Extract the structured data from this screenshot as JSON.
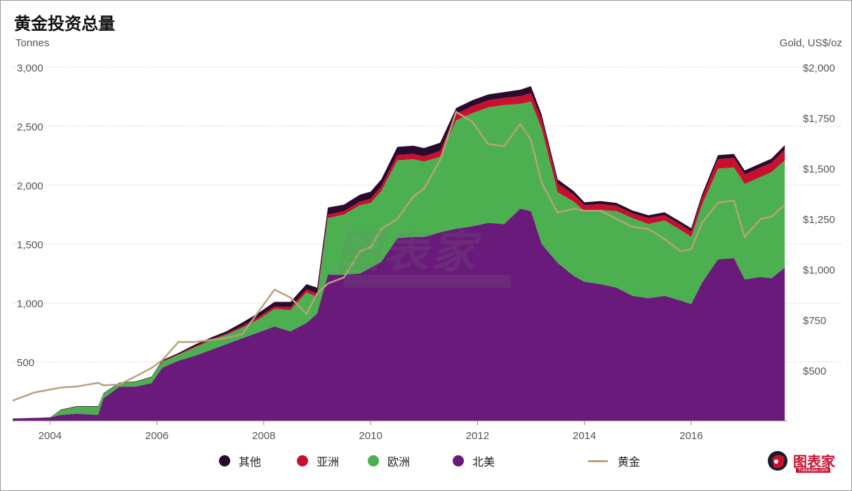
{
  "title": "黄金投资总量",
  "left_unit": "Tonnes",
  "right_unit": "Gold, US$/oz",
  "legend": [
    {
      "label": "其他",
      "color": "#2a0a2e",
      "kind": "dot"
    },
    {
      "label": "亚洲",
      "color": "#c8102e",
      "kind": "dot"
    },
    {
      "label": "欧洲",
      "color": "#4caf50",
      "kind": "dot"
    },
    {
      "label": "北美",
      "color": "#6a1a7a",
      "kind": "dot"
    },
    {
      "label": "黄金",
      "color": "#b8a27a",
      "kind": "line"
    }
  ],
  "watermark": "图表家",
  "logo_text": "图表家",
  "logo_sub": "Tubiaojia.com",
  "chart_data": {
    "type": "area",
    "x": [
      2003.3,
      2003.7,
      2004.0,
      2004.2,
      2004.5,
      2004.9,
      2005.0,
      2005.3,
      2005.6,
      2005.9,
      2006.1,
      2006.4,
      2006.7,
      2007.0,
      2007.3,
      2007.6,
      2007.9,
      2008.2,
      2008.5,
      2008.8,
      2009.0,
      2009.2,
      2009.5,
      2009.8,
      2010.0,
      2010.2,
      2010.5,
      2010.8,
      2011.0,
      2011.3,
      2011.6,
      2011.9,
      2012.2,
      2012.5,
      2012.8,
      2013.0,
      2013.2,
      2013.5,
      2013.8,
      2014.0,
      2014.3,
      2014.6,
      2014.9,
      2015.2,
      2015.5,
      2015.8,
      2016.0,
      2016.2,
      2016.5,
      2016.8,
      2017.0,
      2017.3,
      2017.5,
      2017.75
    ],
    "xticks": [
      2004,
      2006,
      2008,
      2010,
      2012,
      2014,
      2016
    ],
    "ylim_left": [
      0,
      3000
    ],
    "yticks_left": [
      500,
      1000,
      1500,
      2000,
      2500,
      3000
    ],
    "ytick_labels_left": [
      "500",
      "1,000",
      "1,500",
      "2,000",
      "2,500",
      "3,000"
    ],
    "ylim_right": [
      250,
      2000
    ],
    "yticks_right": [
      500,
      750,
      1000,
      1250,
      1500,
      1750,
      2000
    ],
    "ytick_labels_right": [
      "$500",
      "$750",
      "$1,000",
      "$1,250",
      "$1,500",
      "$1,750",
      "$2,000"
    ],
    "series": [
      {
        "name": "北美",
        "values": [
          20,
          25,
          30,
          50,
          60,
          50,
          190,
          290,
          290,
          320,
          450,
          510,
          550,
          600,
          650,
          700,
          750,
          800,
          760,
          830,
          910,
          1240,
          1240,
          1250,
          1300,
          1350,
          1550,
          1560,
          1560,
          1600,
          1630,
          1650,
          1680,
          1670,
          1800,
          1780,
          1500,
          1340,
          1230,
          1180,
          1160,
          1130,
          1060,
          1040,
          1060,
          1020,
          990,
          1170,
          1370,
          1380,
          1200,
          1220,
          1210,
          1300
        ]
      },
      {
        "name": "欧洲",
        "values": [
          0,
          0,
          0,
          40,
          60,
          70,
          40,
          30,
          40,
          50,
          50,
          50,
          70,
          80,
          80,
          90,
          110,
          150,
          180,
          260,
          140,
          480,
          510,
          580,
          550,
          600,
          660,
          660,
          640,
          640,
          920,
          960,
          980,
          1010,
          890,
          930,
          980,
          600,
          630,
          600,
          630,
          650,
          660,
          630,
          640,
          600,
          570,
          660,
          770,
          770,
          810,
          850,
          900,
          910
        ]
      },
      {
        "name": "亚洲",
        "values": [
          0,
          0,
          0,
          0,
          0,
          0,
          0,
          0,
          0,
          0,
          5,
          5,
          10,
          10,
          10,
          15,
          20,
          20,
          25,
          25,
          30,
          30,
          30,
          30,
          35,
          40,
          45,
          45,
          45,
          50,
          55,
          60,
          60,
          60,
          65,
          70,
          80,
          75,
          60,
          50,
          50,
          45,
          40,
          50,
          45,
          45,
          45,
          60,
          80,
          80,
          80,
          80,
          80,
          90
        ]
      },
      {
        "name": "其他",
        "values": [
          0,
          0,
          0,
          5,
          5,
          5,
          5,
          5,
          5,
          5,
          10,
          10,
          15,
          15,
          20,
          30,
          35,
          40,
          45,
          45,
          50,
          60,
          55,
          60,
          60,
          60,
          70,
          70,
          70,
          70,
          50,
          50,
          50,
          50,
          55,
          60,
          40,
          35,
          30,
          25,
          25,
          25,
          25,
          25,
          25,
          25,
          30,
          30,
          35,
          35,
          35,
          35,
          35,
          40
        ]
      }
    ],
    "gold_price": {
      "name": "黄金",
      "values": [
        350,
        390,
        405,
        415,
        420,
        438,
        426,
        430,
        470,
        512,
        550,
        640,
        640,
        650,
        660,
        680,
        790,
        900,
        860,
        780,
        880,
        930,
        960,
        1090,
        1110,
        1200,
        1250,
        1360,
        1400,
        1540,
        1780,
        1730,
        1620,
        1610,
        1720,
        1640,
        1430,
        1280,
        1300,
        1290,
        1290,
        1250,
        1210,
        1200,
        1150,
        1090,
        1100,
        1230,
        1330,
        1340,
        1160,
        1250,
        1260,
        1320
      ]
    }
  }
}
